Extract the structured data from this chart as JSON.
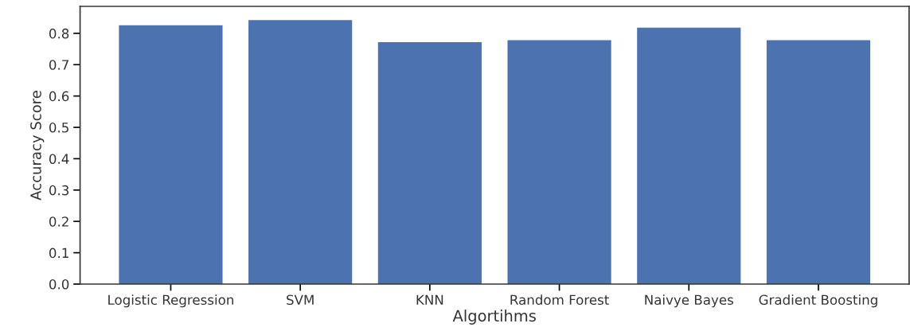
{
  "chart_data": {
    "type": "bar",
    "xlabel": "Algortihms",
    "ylabel": "Accuracy Score",
    "categories": [
      "Logistic Regression",
      "SVM",
      "KNN",
      "Random Forest",
      "Naivye Bayes",
      "Gradient Boosting"
    ],
    "values": [
      0.826,
      0.842,
      0.772,
      0.778,
      0.818,
      0.778
    ],
    "color": "#4c72b0",
    "ylim": [
      0,
      0.886
    ],
    "yticks": [
      {
        "value": 0,
        "label": "0.0"
      },
      0.1,
      0.2,
      0.3,
      0.4,
      0.5,
      0.6,
      0.7,
      0.8
    ],
    "grid": false
  }
}
